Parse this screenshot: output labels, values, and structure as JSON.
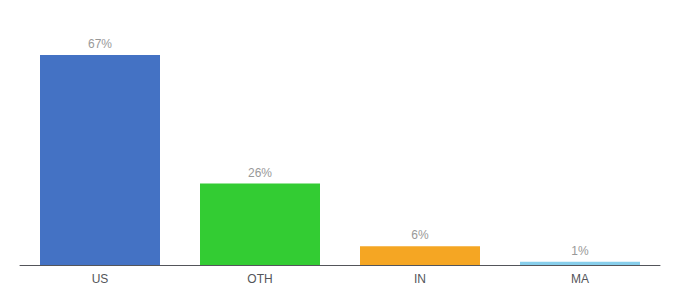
{
  "chart_data": {
    "type": "bar",
    "categories": [
      "US",
      "OTH",
      "IN",
      "MA"
    ],
    "values": [
      67,
      26,
      6,
      1
    ],
    "value_labels": [
      "67%",
      "26%",
      "6%",
      "1%"
    ],
    "colors": [
      "#4472c4",
      "#33cc33",
      "#f5a623",
      "#87ceeb"
    ],
    "ylim": [
      0,
      75
    ],
    "grid": false,
    "data_labels": true,
    "tick_labels": "x"
  }
}
